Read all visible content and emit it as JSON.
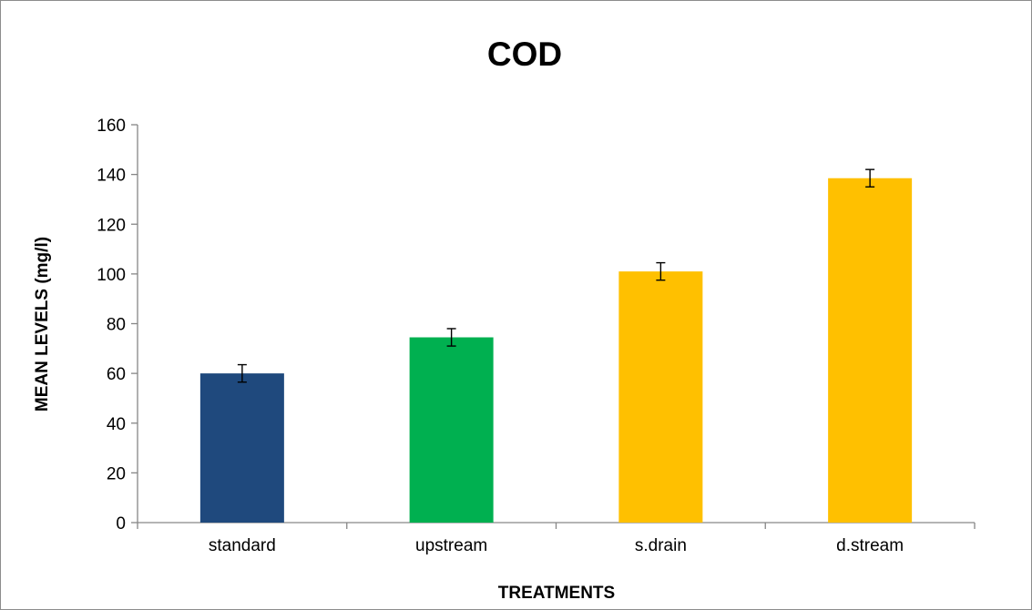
{
  "chart_data": {
    "type": "bar",
    "title": "COD",
    "xlabel": "TREATMENTS",
    "ylabel": "MEAN LEVELS (mg/l)",
    "categories": [
      "standard",
      "upstream",
      "s.drain",
      "d.stream"
    ],
    "values": [
      60,
      74.5,
      101,
      138.5
    ],
    "error": [
      3.5,
      3.5,
      3.5,
      3.5
    ],
    "colors": [
      "#1f497d",
      "#00b050",
      "#ffc000",
      "#ffc000"
    ],
    "ylim": [
      0,
      160
    ],
    "yticks": [
      "0",
      "20",
      "40",
      "60",
      "80",
      "100",
      "120",
      "140",
      "160"
    ],
    "grid": false,
    "legend": "none"
  }
}
